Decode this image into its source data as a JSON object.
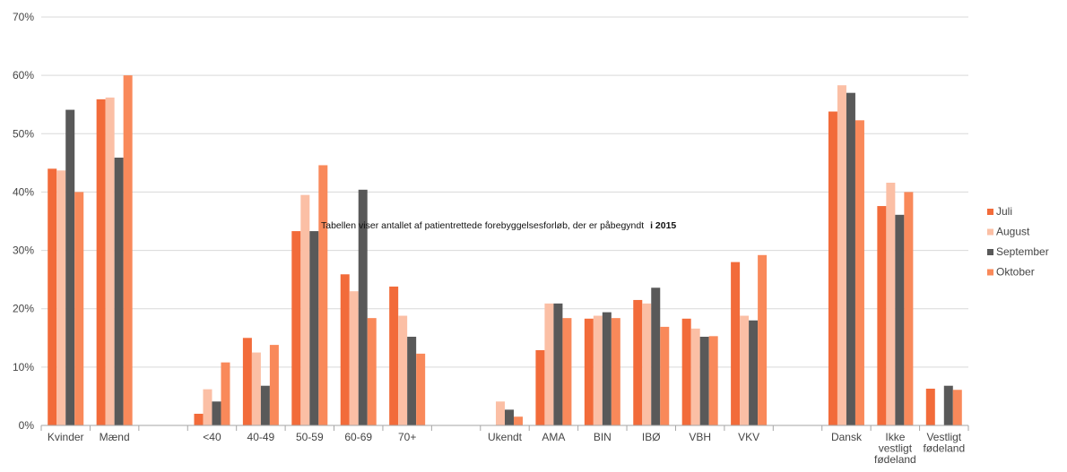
{
  "chart_data": {
    "type": "bar",
    "title": "Tabellen viser antallet af patientrettede forebyggelsesforløb, der er påbegyndt",
    "title_suffix": "i 2015",
    "ylim": [
      0,
      0.7
    ],
    "yticks": [
      0,
      0.1,
      0.2,
      0.3,
      0.4,
      0.5,
      0.6,
      0.7
    ],
    "ytick_labels": [
      "0%",
      "10%",
      "20%",
      "30%",
      "40%",
      "50%",
      "60%",
      "70%"
    ],
    "grid": true,
    "legend_position": "right",
    "categories": [
      [
        "Kvinder"
      ],
      [
        "Mænd"
      ],
      [
        ""
      ],
      [
        "<40"
      ],
      [
        "40-49"
      ],
      [
        "50-59"
      ],
      [
        "60-69"
      ],
      [
        "70+"
      ],
      [
        ""
      ],
      [
        "Ukendt"
      ],
      [
        "AMA"
      ],
      [
        "BIN"
      ],
      [
        "IBØ"
      ],
      [
        "VBH"
      ],
      [
        "VKV"
      ],
      [
        ""
      ],
      [
        "Dansk"
      ],
      [
        "Ikke",
        "vestligt",
        "fødeland"
      ],
      [
        "Vestligt",
        "fødeland"
      ]
    ],
    "series": [
      {
        "name": "Juli",
        "color": "#f26b3a",
        "values": [
          0.44,
          0.559,
          null,
          0.02,
          0.15,
          0.333,
          0.259,
          0.238,
          null,
          0.0,
          0.129,
          0.183,
          0.215,
          0.183,
          0.28,
          null,
          0.538,
          0.376,
          0.063
        ]
      },
      {
        "name": "August",
        "color": "#fbbfa5",
        "values": [
          0.437,
          0.562,
          null,
          0.062,
          0.125,
          0.395,
          0.23,
          0.188,
          null,
          0.041,
          0.209,
          0.188,
          0.209,
          0.166,
          0.188,
          null,
          0.583,
          0.416,
          0.0
        ]
      },
      {
        "name": "September",
        "color": "#595959",
        "values": [
          0.541,
          0.459,
          null,
          0.041,
          0.068,
          0.333,
          0.404,
          0.152,
          null,
          0.027,
          0.209,
          0.194,
          0.236,
          0.152,
          0.18,
          null,
          0.57,
          0.361,
          0.068
        ]
      },
      {
        "name": "Oktober",
        "color": "#f9895a",
        "values": [
          0.4,
          0.6,
          null,
          0.108,
          0.138,
          0.446,
          0.184,
          0.123,
          null,
          0.015,
          0.184,
          0.184,
          0.169,
          0.153,
          0.292,
          null,
          0.523,
          0.4,
          0.061
        ]
      }
    ]
  }
}
